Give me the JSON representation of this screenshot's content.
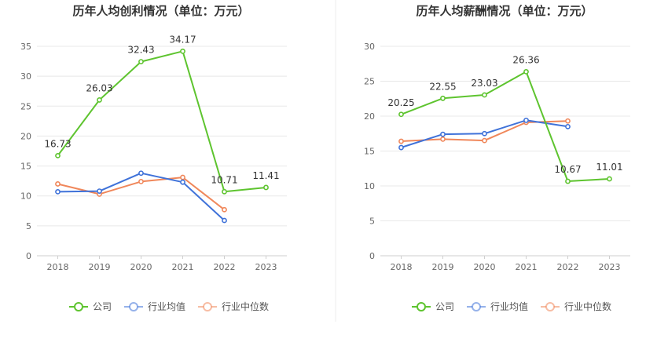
{
  "colors": {
    "company": "#5ec42f",
    "industry_avg": "#3f72d9",
    "industry_median": "#f0875a",
    "divider": "#eeeeee"
  },
  "chart_data": [
    {
      "type": "line",
      "title": "历年人均创利情况（单位：万元）",
      "categories": [
        "2018",
        "2019",
        "2020",
        "2021",
        "2022",
        "2023"
      ],
      "ylim": [
        0,
        35
      ],
      "yticks": [
        0,
        5,
        10,
        15,
        20,
        25,
        30,
        35
      ],
      "grid": true,
      "legend": "bottom",
      "series": [
        {
          "key": "company",
          "name": "公司",
          "values": [
            16.73,
            26.03,
            32.43,
            34.17,
            10.71,
            11.41
          ],
          "labels": [
            "16.73",
            "26.03",
            "32.43",
            "34.17",
            "10.71",
            "11.41"
          ]
        },
        {
          "key": "industry_avg",
          "name": "行业均值",
          "values": [
            10.7,
            10.8,
            13.8,
            12.3,
            5.9,
            null
          ]
        },
        {
          "key": "industry_median",
          "name": "行业中位数",
          "values": [
            12.0,
            10.3,
            12.4,
            13.1,
            7.7,
            null
          ]
        }
      ]
    },
    {
      "type": "line",
      "title": "历年人均薪酬情况（单位：万元）",
      "categories": [
        "2018",
        "2019",
        "2020",
        "2021",
        "2022",
        "2023"
      ],
      "ylim": [
        0,
        30
      ],
      "yticks": [
        0,
        5,
        10,
        15,
        20,
        25,
        30
      ],
      "grid": true,
      "legend": "bottom",
      "series": [
        {
          "key": "company",
          "name": "公司",
          "values": [
            20.25,
            22.55,
            23.03,
            26.36,
            10.67,
            11.01
          ],
          "labels": [
            "20.25",
            "22.55",
            "23.03",
            "26.36",
            "10.67",
            "11.01"
          ]
        },
        {
          "key": "industry_avg",
          "name": "行业均值",
          "values": [
            15.5,
            17.4,
            17.5,
            19.4,
            18.5,
            null
          ]
        },
        {
          "key": "industry_median",
          "name": "行业中位数",
          "values": [
            16.4,
            16.7,
            16.5,
            19.1,
            19.3,
            null
          ]
        }
      ]
    }
  ]
}
